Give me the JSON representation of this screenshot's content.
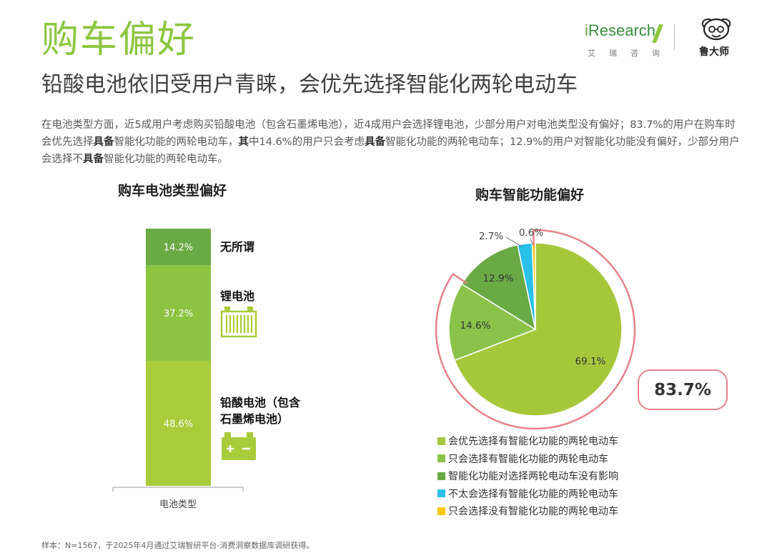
{
  "page": {
    "title": "购车偏好",
    "subtitle": "铅酸电池依旧受用户青睐，会优先选择智能化两轮电动车",
    "para": [
      {
        "t": "在电池类型方面，近5成用户考虑购买铅酸电池（包含石墨烯电池），近4成用户会选择锂电池，少部分用户对电池类型没有偏好；83.7%的用户在购车时会优先选择",
        "b": false
      },
      {
        "t": "具备",
        "b": true
      },
      {
        "t": "智能化功能的两轮电动车，",
        "b": false
      },
      {
        "t": "其",
        "b": true
      },
      {
        "t": "中14.6%的用户只会考虑",
        "b": false
      },
      {
        "t": "具备",
        "b": true
      },
      {
        "t": "智能化功能的两轮电动车；12.9%的用户对智能化功能没有偏好，少部分用户会选择不",
        "b": false
      },
      {
        "t": "具备",
        "b": true
      },
      {
        "t": "智能化功能的两轮电动车。",
        "b": false
      }
    ],
    "footnote": "样本：N=1567，于2025年4月通过艾瑞智研平台-消费洞察数据库调研获得。"
  },
  "logos": {
    "iresearch_i": "i",
    "iresearch_word": "Research",
    "iresearch_cn": "艾瑞咨询",
    "ludashi": "鲁大师"
  },
  "colors": {
    "title_green": "#8dc63f",
    "bar_dark": "#6aaa45",
    "bar_mid": "#8cc341",
    "bar_light": "#a8cc3a",
    "pie_main": "#a5c83b",
    "pie_second": "#8bc34a",
    "pie_third": "#6aaa45",
    "pie_cyan": "#29c1ea",
    "pie_yellow": "#ffc90e",
    "highlight": "#e8828e"
  },
  "chart_data": [
    {
      "type": "bar",
      "title": "购车电池类型偏好",
      "stacked": true,
      "categories": [
        "电池类型"
      ],
      "series": [
        {
          "name": "铅酸电池（包含石墨烯电池）",
          "values": [
            48.6
          ],
          "label": "48.6%",
          "color": "#a8cc3a"
        },
        {
          "name": "锂电池",
          "values": [
            37.2
          ],
          "label": "37.2%",
          "color": "#8cc341"
        },
        {
          "name": "无所谓",
          "values": [
            14.2
          ],
          "label": "14.2%",
          "color": "#6aaa45"
        }
      ],
      "side_labels": [
        {
          "lines": [
            "无所谓"
          ]
        },
        {
          "lines": [
            "锂电池"
          ]
        },
        {
          "lines": [
            "铅酸电池（包含",
            "石墨烯电池）"
          ]
        }
      ],
      "xlabel": "电池类型",
      "ylim": [
        0,
        100
      ]
    },
    {
      "type": "pie",
      "title": "购车智能功能偏好",
      "slices": [
        {
          "name": "会优先选择有智能化功能的两轮电动车",
          "value": 69.1,
          "label": "69.1%",
          "color": "#a5c83b"
        },
        {
          "name": "只会选择有智能化功能的两轮电动车",
          "value": 14.6,
          "label": "14.6%",
          "color": "#8bc34a"
        },
        {
          "name": "智能化功能对选择两轮电动车没有影响",
          "value": 12.9,
          "label": "12.9%",
          "color": "#6aaa45"
        },
        {
          "name": "不太会选择有智能化功能的两轮电动车",
          "value": 2.7,
          "label": "2.7%",
          "color": "#29c1ea"
        },
        {
          "name": "只会选择没有智能化功能的两轮电动车",
          "value": 0.6,
          "label": "0.6%",
          "color": "#ffc90e"
        }
      ],
      "highlight": {
        "label": "83.7%",
        "covers": [
          "会优先选择有智能化功能的两轮电动车",
          "只会选择有智能化功能的两轮电动车"
        ]
      },
      "legend_position": "bottom"
    }
  ]
}
